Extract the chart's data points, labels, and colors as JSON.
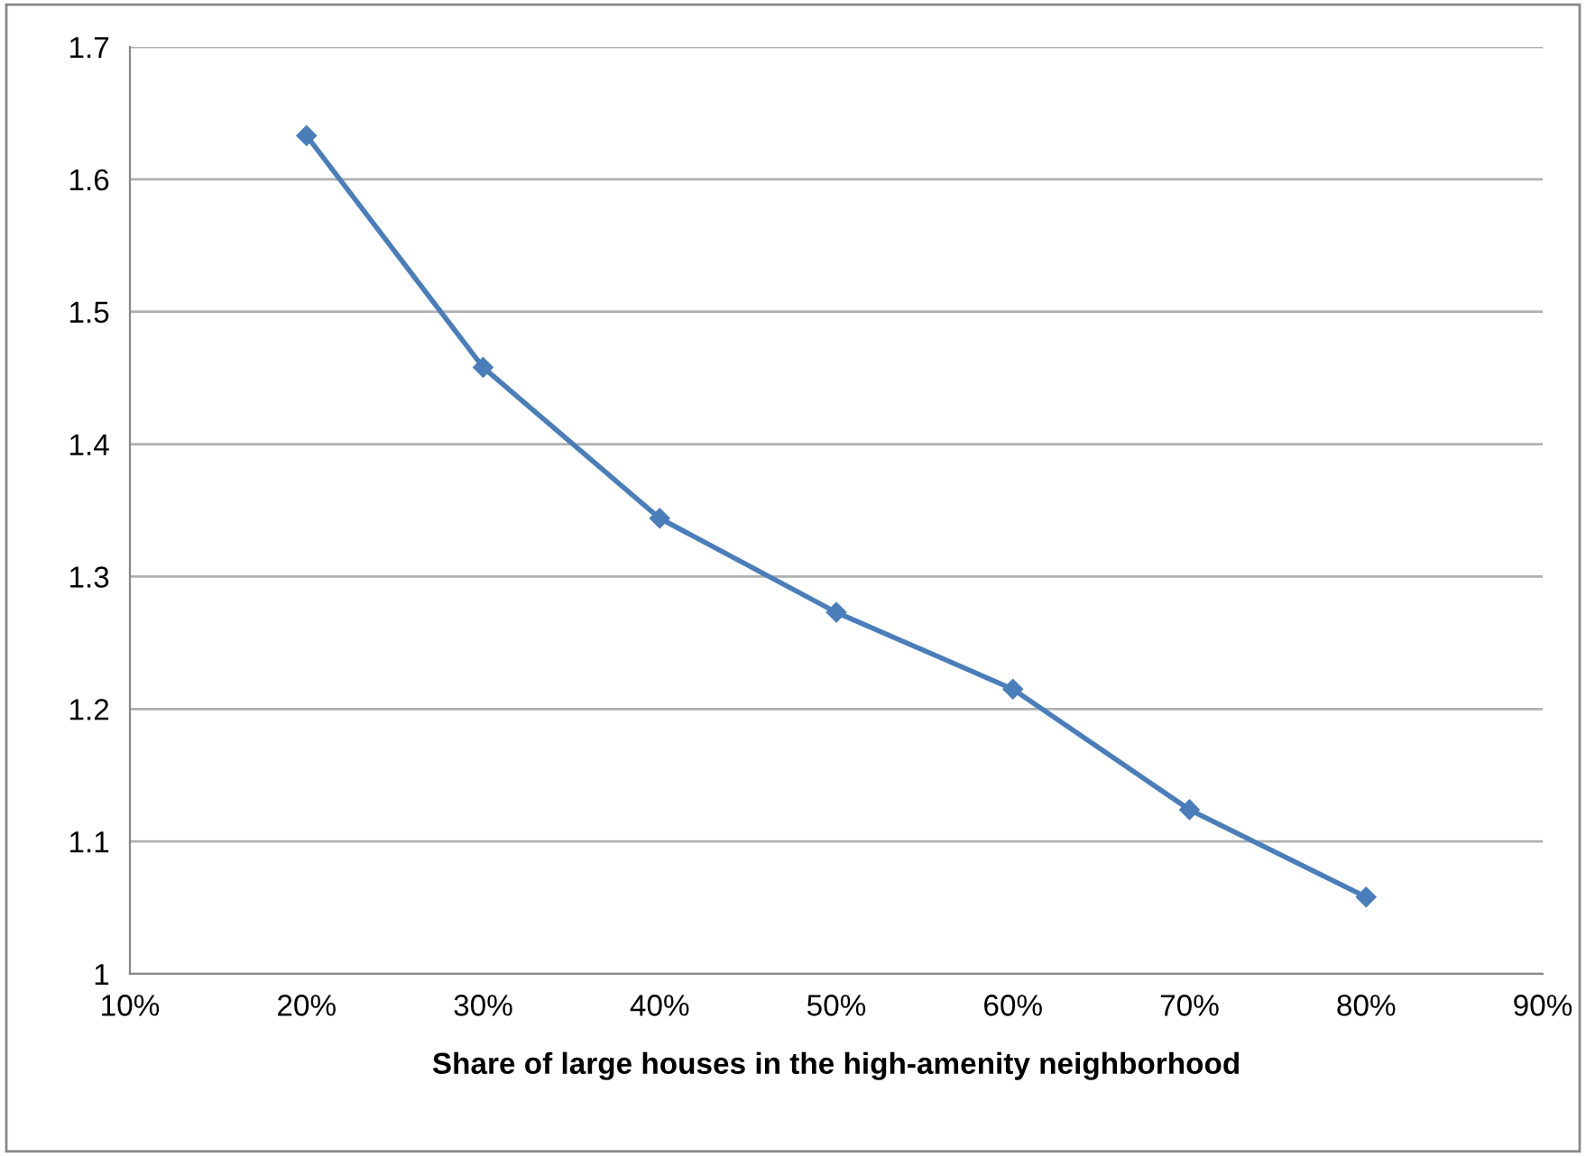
{
  "chart_data": {
    "type": "line",
    "xlabel": "Share of large houses in the high-amenity neighborhood",
    "x": [
      20,
      30,
      40,
      50,
      60,
      70,
      80
    ],
    "series": [
      {
        "color": "#4a7ebb",
        "values": [
          1.633,
          1.458,
          1.344,
          1.273,
          1.215,
          1.124,
          1.058
        ]
      }
    ],
    "xlim": [
      10,
      90
    ],
    "xticks": [
      {
        "value": 10,
        "label": "10%"
      },
      {
        "value": 20,
        "label": "20%"
      },
      {
        "value": 30,
        "label": "30%"
      },
      {
        "value": 40,
        "label": "40%"
      },
      {
        "value": 50,
        "label": "50%"
      },
      {
        "value": 60,
        "label": "60%"
      },
      {
        "value": 70,
        "label": "70%"
      },
      {
        "value": 80,
        "label": "80%"
      },
      {
        "value": 90,
        "label": "90%"
      }
    ],
    "ylim": [
      1,
      1.7
    ],
    "yticks": [
      1,
      1.1,
      1.2,
      1.3,
      1.4,
      1.5,
      1.6,
      1.7
    ],
    "grid": "y",
    "marker": "diamond",
    "line_style": "solid",
    "legend": false
  }
}
